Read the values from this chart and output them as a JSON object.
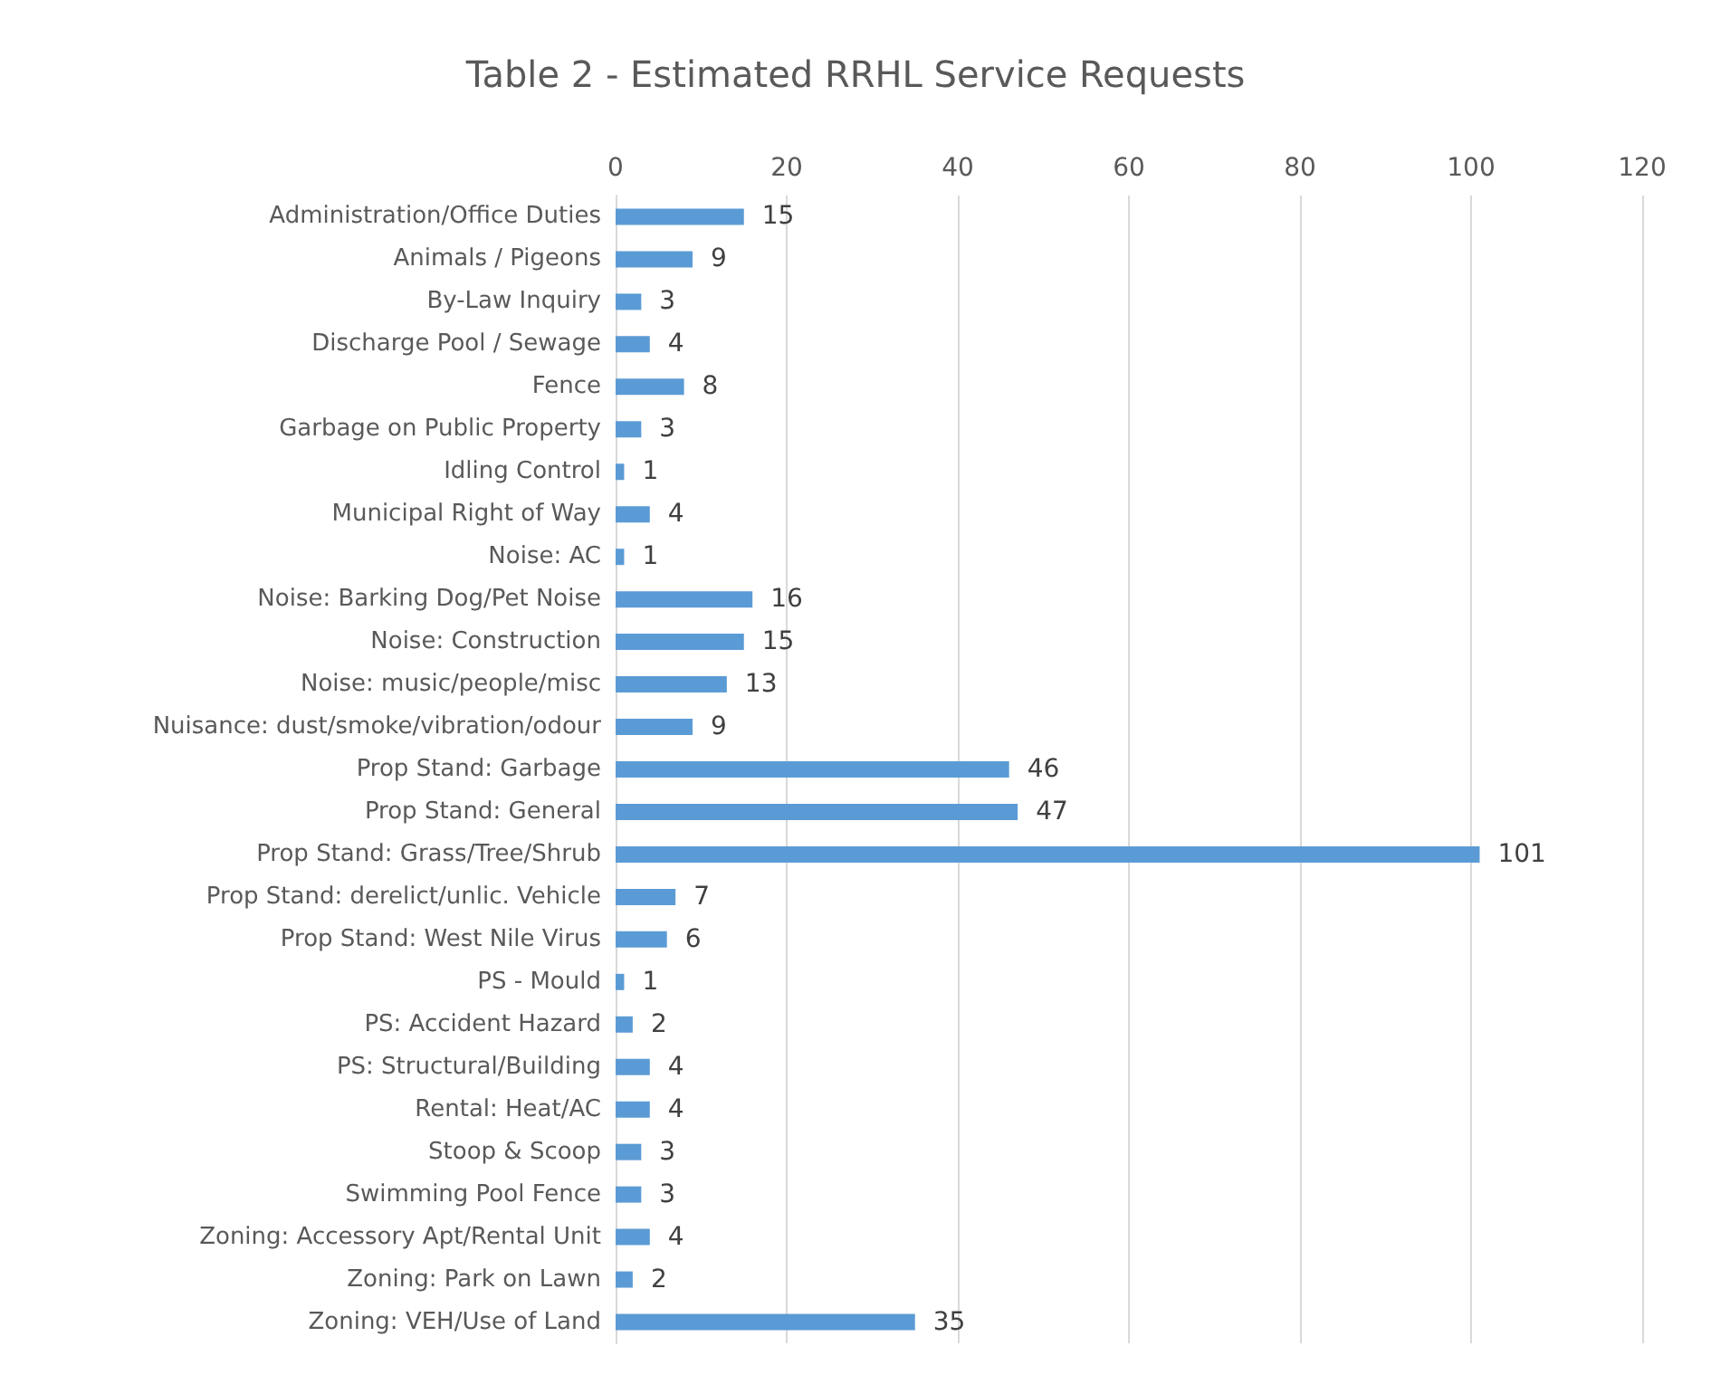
{
  "chart_data": {
    "type": "bar",
    "orientation": "horizontal",
    "title": "Table 2 - Estimated RRHL Service Requests",
    "categories": [
      "Administration/Office Duties",
      "Animals / Pigeons",
      "By-Law Inquiry",
      "Discharge Pool / Sewage",
      "Fence",
      "Garbage on Public Property",
      "Idling Control",
      "Municipal Right of Way",
      "Noise: AC",
      "Noise: Barking Dog/Pet Noise",
      "Noise: Construction",
      "Noise: music/people/misc",
      "Nuisance: dust/smoke/vibration/odour",
      "Prop Stand: Garbage",
      "Prop Stand: General",
      "Prop Stand: Grass/Tree/Shrub",
      "Prop Stand: derelict/unlic. Vehicle",
      "Prop Stand: West Nile Virus",
      "PS - Mould",
      "PS: Accident Hazard",
      "PS: Structural/Building",
      "Rental: Heat/AC",
      "Stoop & Scoop",
      "Swimming Pool Fence",
      "Zoning: Accessory Apt/Rental Unit",
      "Zoning: Park on Lawn",
      "Zoning: VEH/Use of Land"
    ],
    "values": [
      15,
      9,
      3,
      4,
      8,
      3,
      1,
      4,
      1,
      16,
      15,
      13,
      9,
      46,
      47,
      101,
      7,
      6,
      1,
      2,
      4,
      4,
      3,
      3,
      4,
      2,
      35
    ],
    "color": "#5b9bd5",
    "xlim": [
      0,
      120
    ],
    "xticks": [
      0,
      20,
      40,
      60,
      80,
      100,
      120
    ],
    "grid": "x",
    "data_labels": true
  }
}
